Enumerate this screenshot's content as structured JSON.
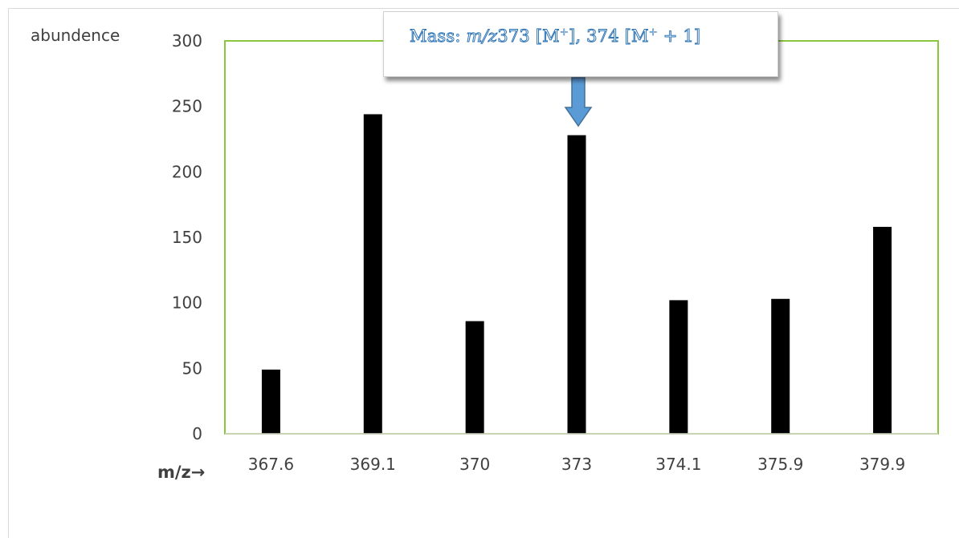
{
  "chart_data": {
    "type": "bar",
    "categories": [
      "367.6",
      "369.1",
      "370",
      "373",
      "374.1",
      "375.9",
      "379.9"
    ],
    "values": [
      49,
      244,
      86,
      228,
      102,
      103,
      158
    ],
    "ylabel": "abundence",
    "xlabel": "m/z→",
    "ylim": [
      0,
      300
    ],
    "yticks": [
      0,
      50,
      100,
      150,
      200,
      250,
      300
    ],
    "grid": false,
    "legend": "none",
    "colors": {
      "bar": "#000000",
      "plot_border": "#8cc63f",
      "axis_line": "#d9d9d9",
      "arrow_fill": "#5b9bd5",
      "arrow_stroke": "#41719c",
      "annotation_text": "#2e75b6"
    },
    "annotation": {
      "prefix": "Mass: ",
      "mz_italic": "m/z",
      "value_1": "373 [M",
      "sup_1": "+",
      "mid": "], 374 [M",
      "sup_2": "+",
      "suffix": " + 1]",
      "points_to_category": "373"
    }
  }
}
